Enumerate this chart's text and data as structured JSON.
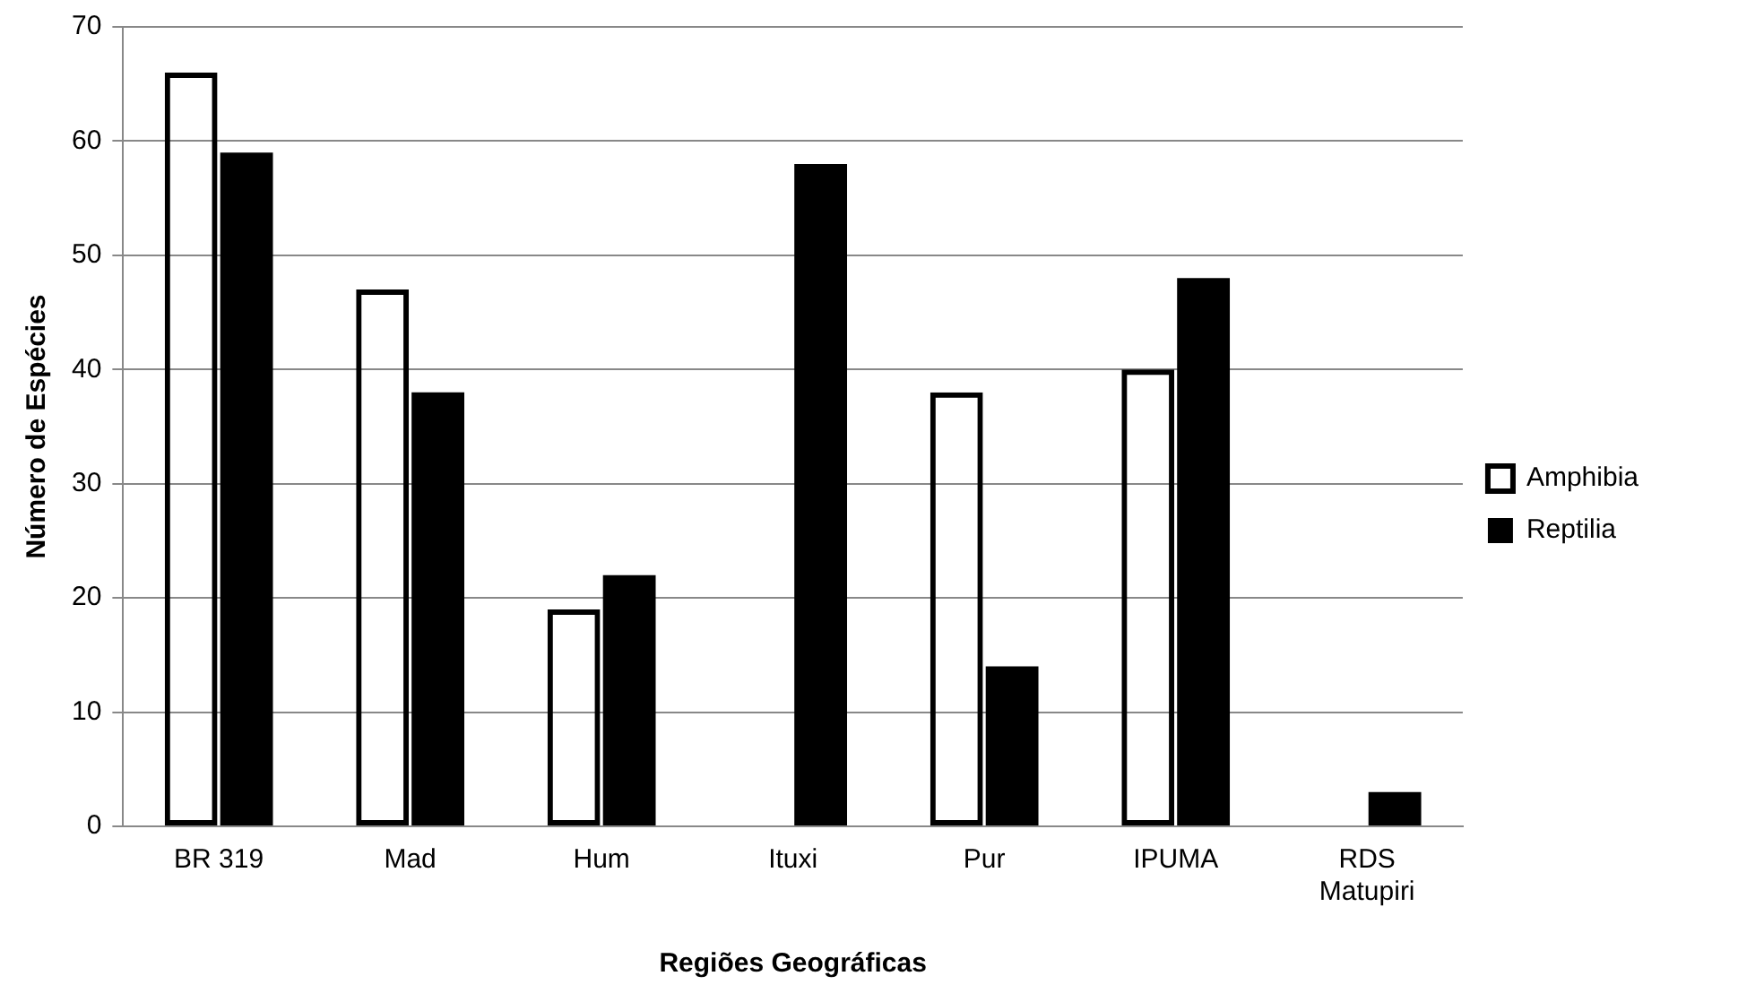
{
  "chart_data": {
    "type": "bar",
    "xlabel": "Regiões Geográficas",
    "ylabel": "Número de Espécies",
    "categories": [
      "BR 319",
      "Mad",
      "Hum",
      "Ituxi",
      "Pur",
      "IPUMA",
      "RDS Matupiri"
    ],
    "series": [
      {
        "name": "Amphibia",
        "color": "#000000",
        "values": [
          66,
          47,
          19,
          null,
          38,
          40,
          null
        ]
      },
      {
        "name": "Reptilia",
        "color": "#000000",
        "values": [
          59,
          38,
          22,
          58,
          14,
          48,
          3
        ]
      }
    ],
    "ylim": [
      0,
      70
    ],
    "yticks": [
      0,
      10,
      20,
      30,
      40,
      50,
      60,
      70
    ],
    "grid": "y",
    "legend": "right"
  }
}
